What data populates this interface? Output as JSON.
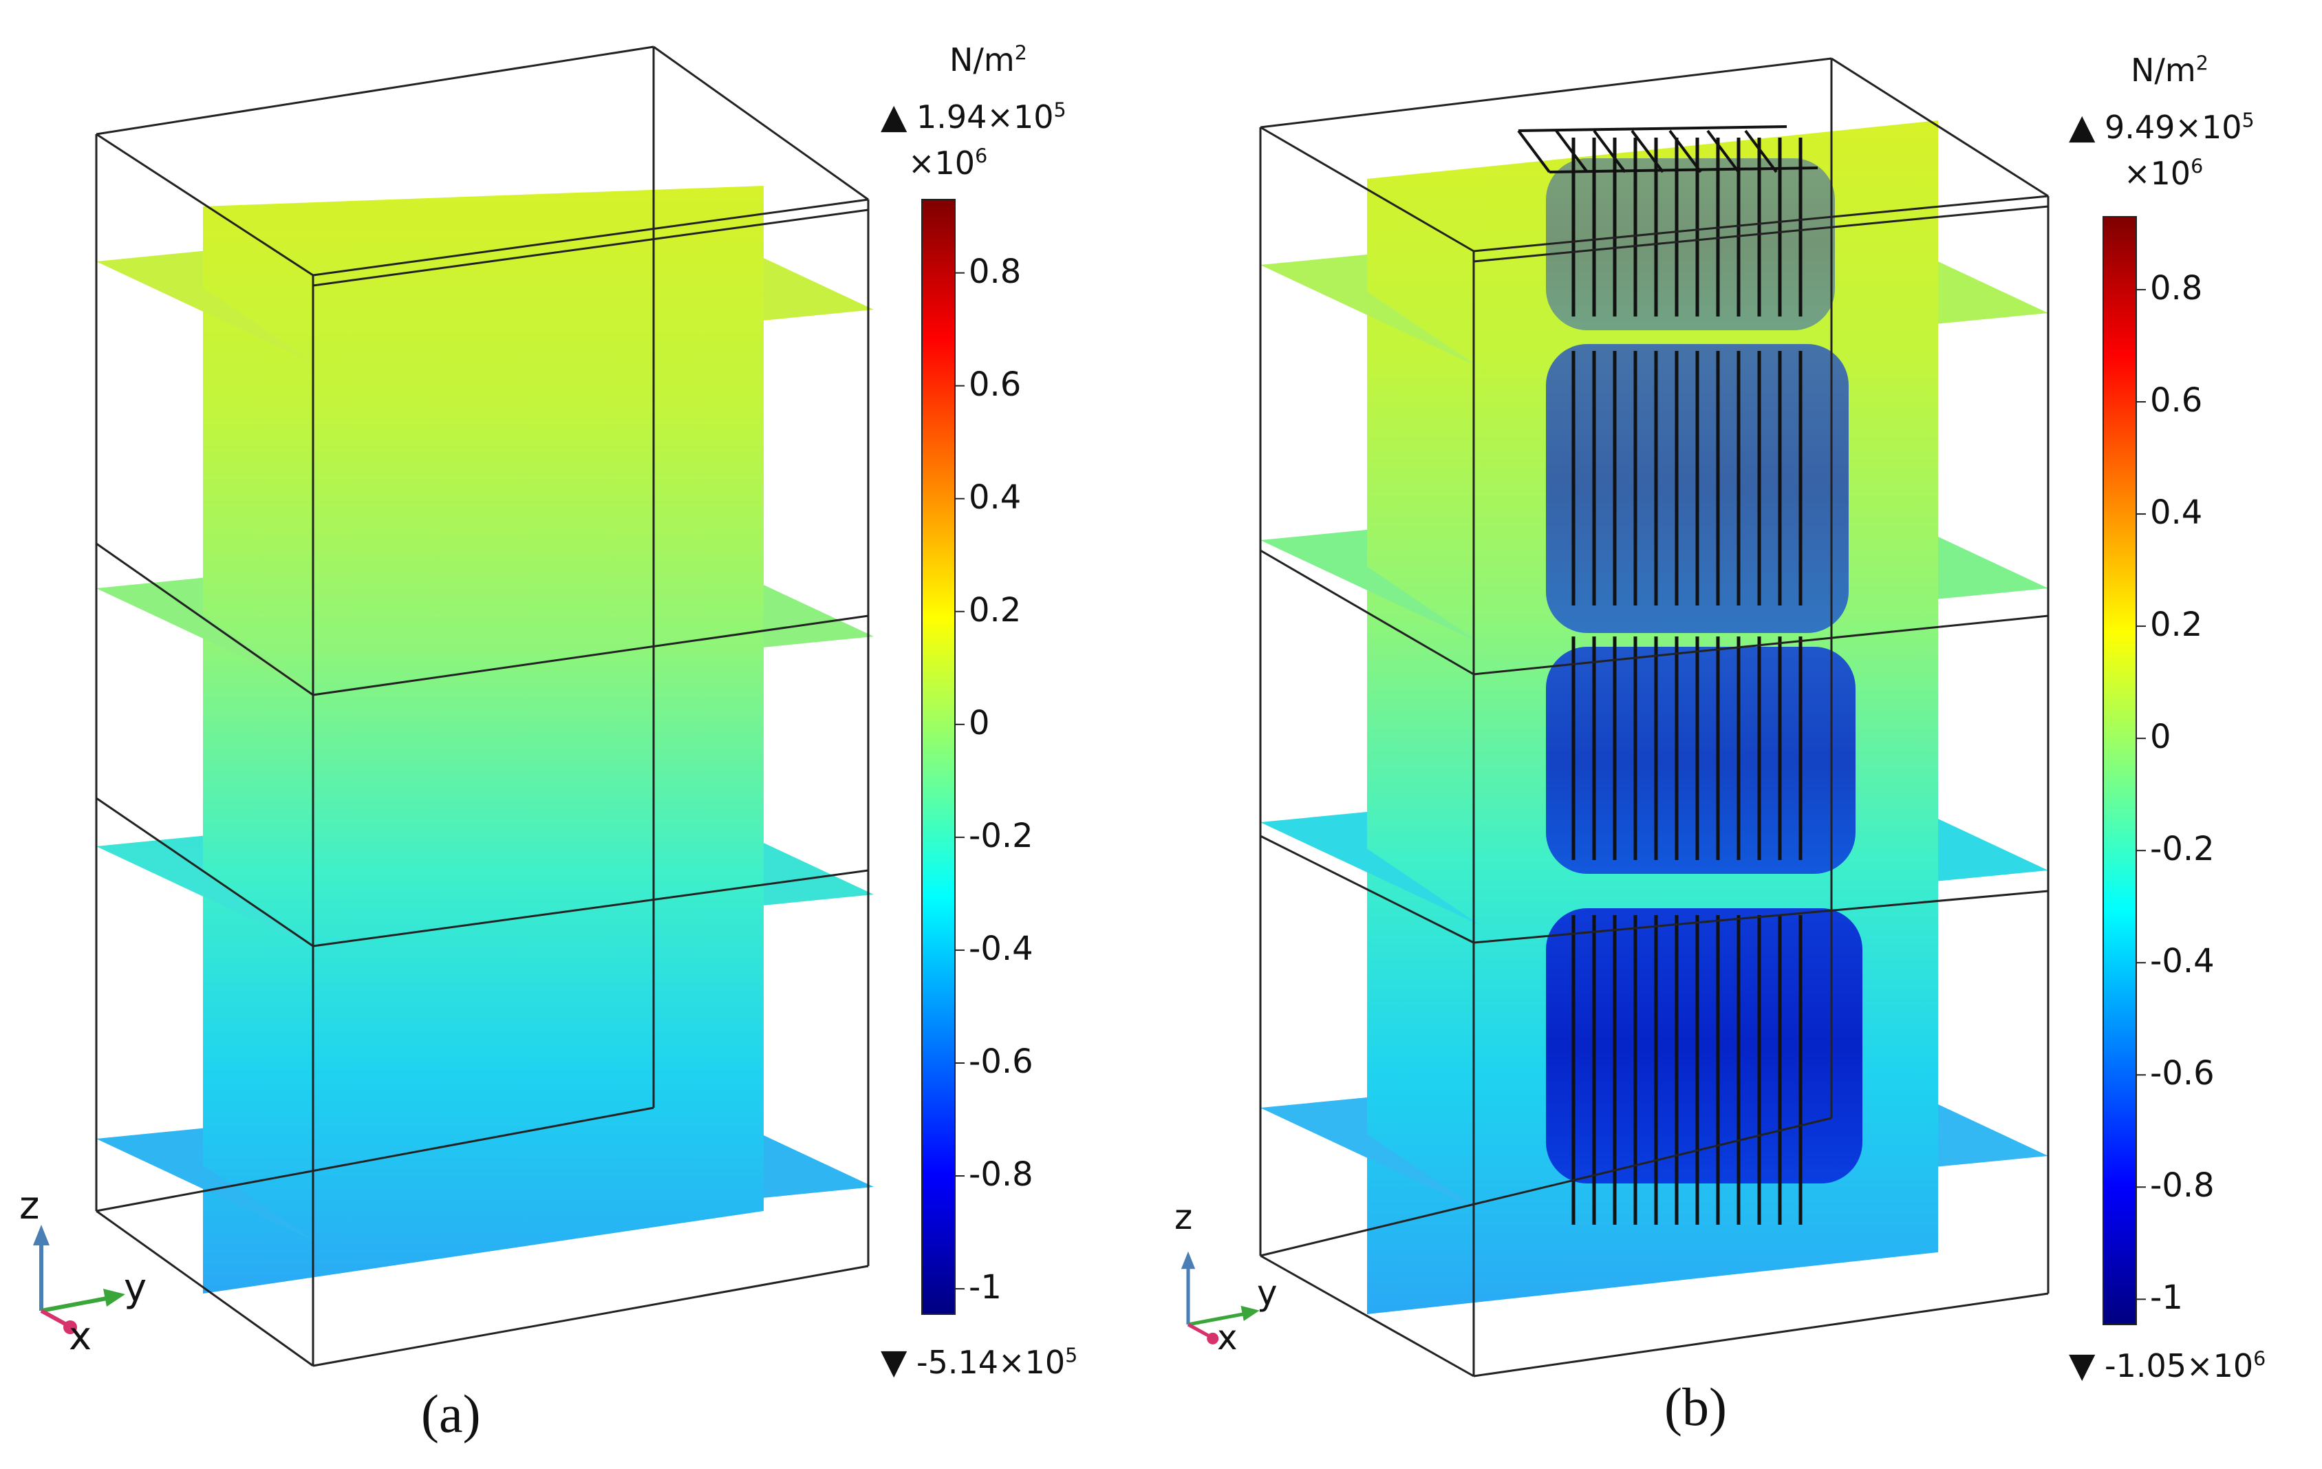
{
  "panels": [
    {
      "id": "a",
      "caption": "(a)",
      "unit": "N/m",
      "unit_exp": "2",
      "max_text": "1.94×10",
      "max_exp": "5",
      "min_text": "-5.14×10",
      "min_exp": "5",
      "multiplier": "×10",
      "multiplier_exp": "6",
      "ticks": [
        "0.8",
        "0.6",
        "0.4",
        "0.2",
        "0",
        "-0.2",
        "-0.4",
        "-0.6",
        "-0.8",
        "-1"
      ],
      "axes": {
        "z": "z",
        "y": "y",
        "x": "x"
      },
      "structure": "plain"
    },
    {
      "id": "b",
      "caption": "(b)",
      "unit": "N/m",
      "unit_exp": "2",
      "max_text": "9.49×10",
      "max_exp": "5",
      "min_text": "-1.05×10",
      "min_exp": "6",
      "multiplier": "×10",
      "multiplier_exp": "6",
      "ticks": [
        "0.8",
        "0.6",
        "0.4",
        "0.2",
        "0",
        "-0.2",
        "-0.4",
        "-0.6",
        "-0.8",
        "-1"
      ],
      "axes": {
        "z": "z",
        "y": "y",
        "x": "x"
      },
      "structure": "piles"
    }
  ],
  "colors": {
    "scale": [
      "#00007f",
      "#0000ff",
      "#0080ff",
      "#00ffff",
      "#80ff80",
      "#ffff00",
      "#ff8000",
      "#ff0000",
      "#7f0000"
    ],
    "z_axis": "#4a7fb5",
    "y_axis": "#3aa63a",
    "x_axis": "#d6336c",
    "pile": "#111111"
  }
}
